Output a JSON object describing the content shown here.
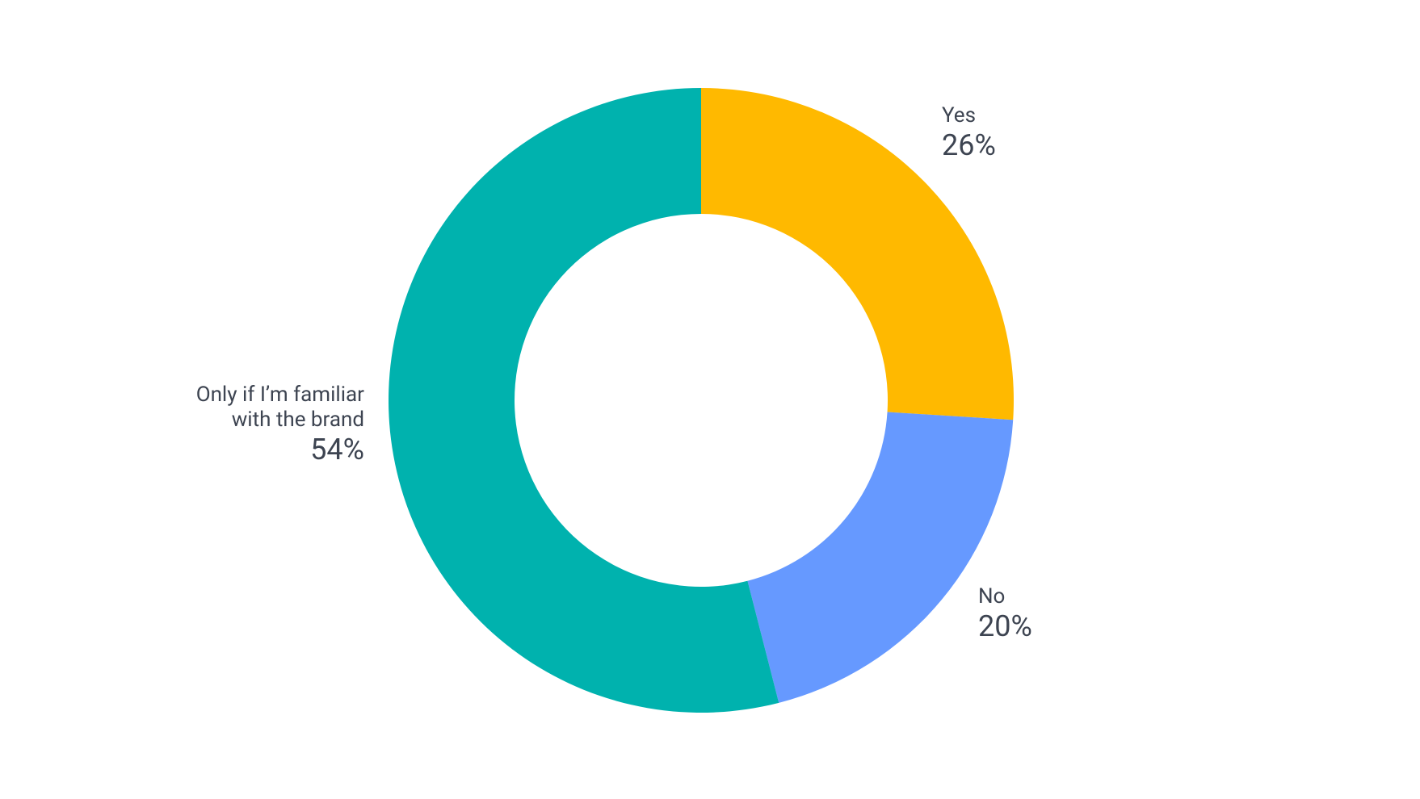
{
  "chart_data": {
    "type": "donut",
    "categories": [
      "Yes",
      "No",
      "Only if I’m familiar with the brand"
    ],
    "values": [
      26,
      20,
      54
    ],
    "value_labels": [
      "26%",
      "20%",
      "54%"
    ],
    "colors": [
      "#FFB900",
      "#6699FF",
      "#00B2AE"
    ]
  }
}
